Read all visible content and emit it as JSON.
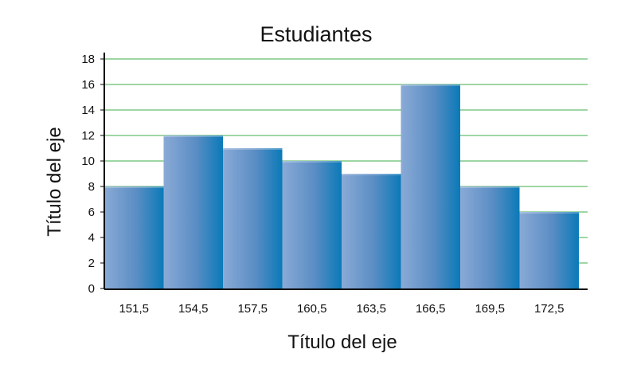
{
  "chart_data": {
    "type": "bar",
    "title": "Estudiantes",
    "xlabel": "Título del eje",
    "ylabel": "Título del eje",
    "categories": [
      "151,5",
      "154,5",
      "157,5",
      "160,5",
      "163,5",
      "166,5",
      "169,5",
      "172,5"
    ],
    "values": [
      8,
      12,
      11,
      10,
      9,
      16,
      8,
      6
    ],
    "ylim": [
      0,
      18
    ],
    "yticks": [
      "0",
      "2",
      "4",
      "6",
      "8",
      "10",
      "12",
      "14",
      "16",
      "18"
    ],
    "grid": true,
    "legend": "none",
    "colors": {
      "bar_light": "#7ea3d3",
      "bar_dark": "#0a7ab8",
      "grid": "#3fae49",
      "axis": "#000000"
    }
  }
}
